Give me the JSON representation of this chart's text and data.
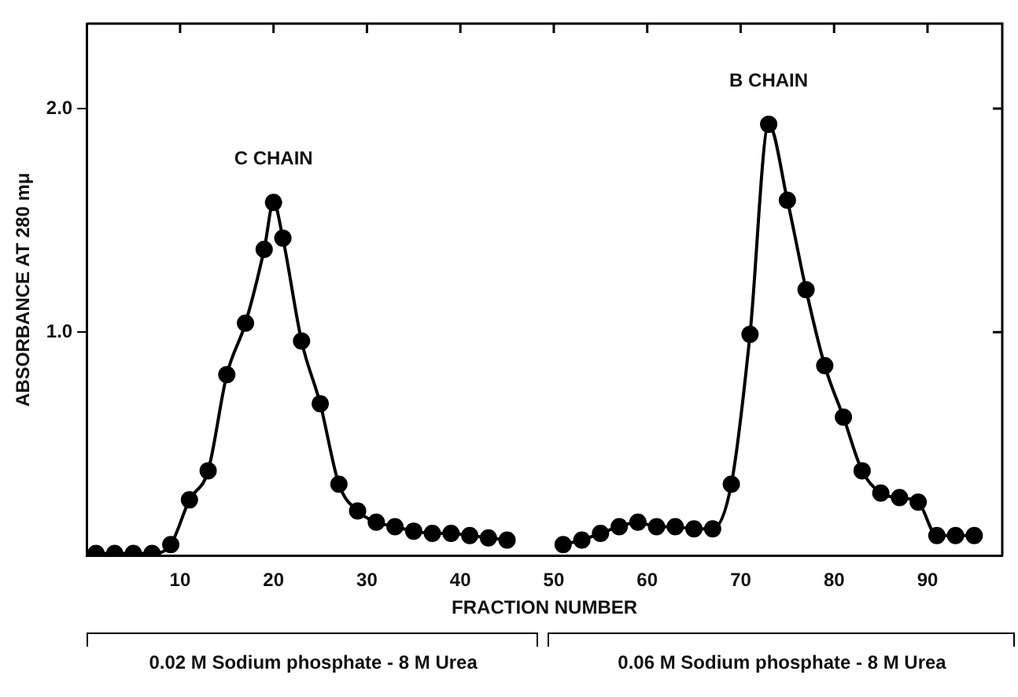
{
  "chart_data": {
    "type": "line",
    "xlabel": "FRACTION NUMBER",
    "ylabel": "ABSORBANCE AT 280 mμ",
    "xlim": [
      0,
      98
    ],
    "ylim": [
      0,
      2.38
    ],
    "xticks": [
      10,
      20,
      30,
      40,
      50,
      60,
      70,
      80,
      90
    ],
    "yticks": [
      {
        "value": 1,
        "label": "1.0"
      },
      {
        "value": 2,
        "label": "2.0"
      }
    ],
    "series": [
      {
        "color": "#000000",
        "x": [
          1,
          3,
          5,
          7,
          9,
          11,
          13,
          15,
          17,
          19,
          20,
          21,
          23,
          25,
          27,
          29,
          31,
          33,
          35,
          37,
          39,
          41,
          43,
          45
        ],
        "values": [
          0.01,
          0.01,
          0.01,
          0.01,
          0.05,
          0.25,
          0.38,
          0.81,
          1.04,
          1.37,
          1.58,
          1.42,
          0.96,
          0.68,
          0.32,
          0.2,
          0.15,
          0.13,
          0.11,
          0.1,
          0.1,
          0.09,
          0.08,
          0.07
        ]
      },
      {
        "color": "#000000",
        "x": [
          51,
          53,
          55,
          57,
          59,
          61,
          63,
          65,
          67,
          69,
          71,
          73,
          75,
          77,
          79,
          81,
          83,
          85,
          87,
          89,
          91,
          93,
          95
        ],
        "values": [
          0.05,
          0.07,
          0.1,
          0.13,
          0.15,
          0.13,
          0.13,
          0.12,
          0.12,
          0.32,
          0.99,
          1.93,
          1.59,
          1.19,
          0.85,
          0.62,
          0.38,
          0.28,
          0.26,
          0.24,
          0.09,
          0.09,
          0.09
        ]
      }
    ],
    "annotations": [
      "C CHAIN",
      "B CHAIN",
      "0.02 M Sodium phosphate - 8 M Urea",
      "0.06 M Sodium phosphate - 8 M Urea"
    ],
    "marker": "circle",
    "line_style": "solid",
    "grid": false,
    "legend": false
  }
}
